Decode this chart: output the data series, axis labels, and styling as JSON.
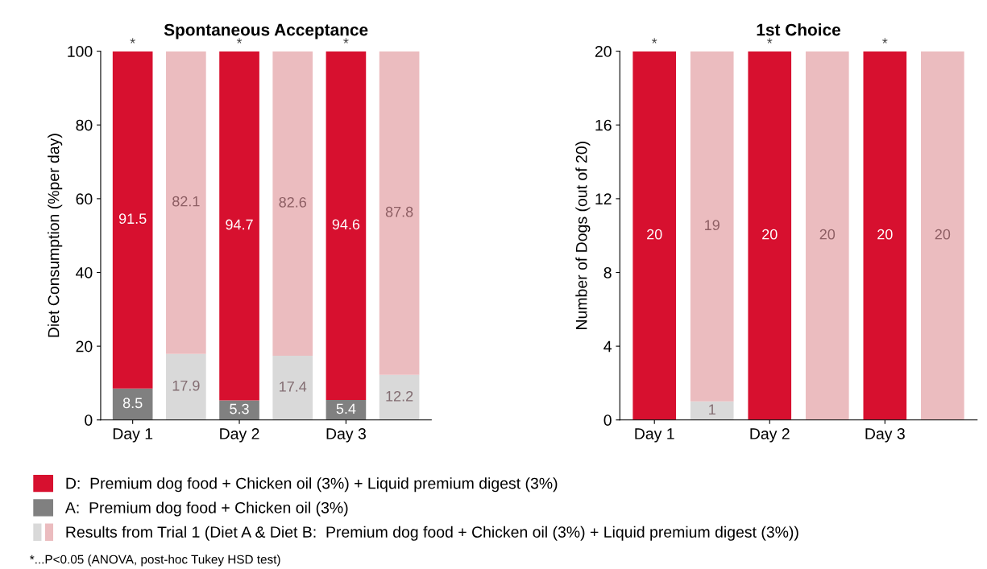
{
  "chart_data": [
    {
      "type": "bar",
      "title": "Spontaneous Acceptance",
      "ylabel": "Diet Consumption (%per day)",
      "stacked": true,
      "categories": [
        "Day 1",
        null,
        "Day 2",
        null,
        "Day 3",
        null
      ],
      "ylim": [
        0,
        100
      ],
      "yticks": [
        0,
        20,
        40,
        60,
        80,
        100
      ],
      "grid": false,
      "legend": "bottom",
      "series": [
        {
          "name": "A:  Premium dog food + Chicken oil (3%)",
          "color": "#808080",
          "values": [
            8.5,
            null,
            5.3,
            null,
            5.4,
            null
          ],
          "value_labels": [
            "8.5",
            null,
            "5.3",
            null,
            "5.4",
            null
          ]
        },
        {
          "name": "D:  Premium dog food + Chicken oil (3%) + Liquid premium digest (3%)",
          "color": "#d7102f",
          "values": [
            91.5,
            null,
            94.7,
            null,
            94.6,
            null
          ],
          "value_labels": [
            "91.5",
            null,
            "94.7",
            null,
            "94.6",
            null
          ]
        },
        {
          "color": "#d9d9d9",
          "values": [
            null,
            17.9,
            null,
            17.4,
            null,
            12.2
          ],
          "value_labels": [
            null,
            "17.9",
            null,
            "17.4",
            null,
            "12.2"
          ]
        },
        {
          "name": "Results from Trial 1 (Diet A & Diet B:  Premium dog food + Chicken oil (3%) + Liquid premium digest (3%))",
          "color": "#ebbcbf",
          "values": [
            null,
            82.1,
            null,
            82.6,
            null,
            87.8
          ],
          "value_labels": [
            null,
            "82.1",
            null,
            "82.6",
            null,
            "87.8"
          ]
        }
      ],
      "annotations": [
        {
          "text": "*",
          "x": "Day 1",
          "y": 100
        },
        {
          "text": "*",
          "x": "Day 2",
          "y": 100
        },
        {
          "text": "*",
          "x": "Day 3",
          "y": 100
        },
        "*...P<0.05 (ANOVA, post-hoc Tukey HSD test)"
      ]
    },
    {
      "type": "bar",
      "title": "1st Choice",
      "ylabel": "Number of Dogs (out of 20)",
      "stacked": true,
      "categories": [
        "Day 1",
        null,
        "Day 2",
        null,
        "Day 3",
        null
      ],
      "ylim": [
        0,
        20
      ],
      "yticks": [
        0,
        4,
        8,
        12,
        16,
        20
      ],
      "grid": false,
      "series": [
        {
          "color": "#d7102f",
          "values": [
            20,
            null,
            20,
            null,
            20,
            null
          ],
          "value_labels": [
            "20",
            null,
            "20",
            null,
            "20",
            null
          ]
        },
        {
          "color": "#d9d9d9",
          "values": [
            null,
            1,
            null,
            0,
            null,
            0
          ],
          "value_labels": [
            null,
            "1",
            null,
            null,
            null,
            null
          ]
        },
        {
          "color": "#ebbcbf",
          "values": [
            null,
            19,
            null,
            20,
            null,
            20
          ],
          "value_labels": [
            null,
            "19",
            null,
            "20",
            null,
            "20"
          ]
        }
      ],
      "annotations": [
        {
          "text": "*",
          "x": "Day 1",
          "y": 20
        },
        {
          "text": "*",
          "x": "Day 2",
          "y": 20
        },
        {
          "text": "*",
          "x": "Day 3",
          "y": 20
        }
      ]
    }
  ]
}
